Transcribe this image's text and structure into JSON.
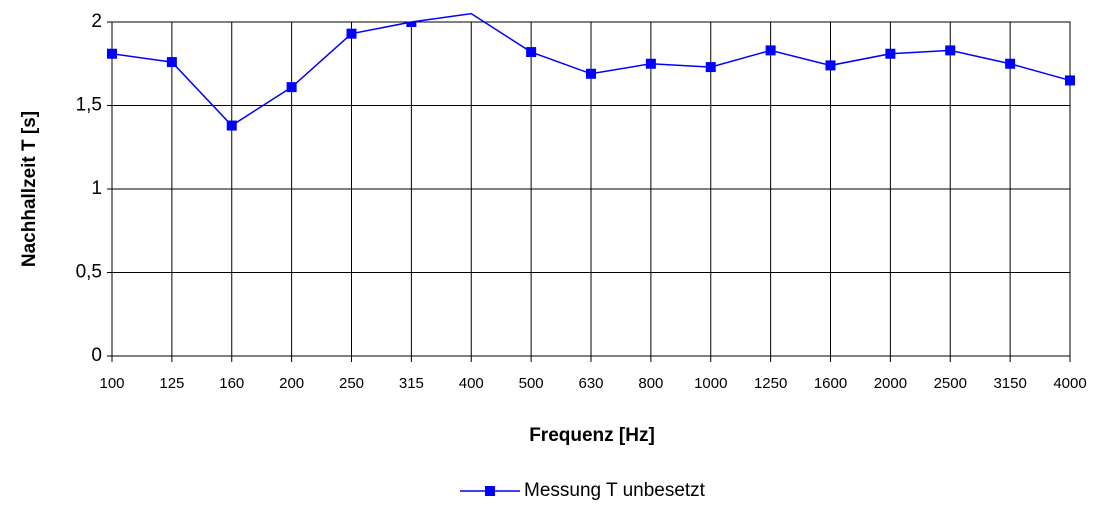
{
  "chart_data": {
    "type": "line",
    "xlabel": "Frequenz [Hz]",
    "ylabel": "Nachhallzeit T [s]",
    "categories": [
      "100",
      "125",
      "160",
      "200",
      "250",
      "315",
      "400",
      "500",
      "630",
      "800",
      "1000",
      "1250",
      "1600",
      "2000",
      "2500",
      "3150",
      "4000"
    ],
    "series": [
      {
        "name": "Messung T unbesetzt",
        "color": "#0000ff",
        "values": [
          1.81,
          1.76,
          1.38,
          1.61,
          1.93,
          2.0,
          2.05,
          1.82,
          1.69,
          1.75,
          1.73,
          1.83,
          1.74,
          1.81,
          1.83,
          1.75,
          1.65
        ]
      }
    ],
    "ylim": [
      0,
      2
    ],
    "yticks": [
      0,
      {
        "value": 0.5,
        "label": "0,5"
      },
      1,
      {
        "value": 1.5,
        "label": "1,5"
      },
      2
    ],
    "grid": true,
    "legend": "bottom"
  }
}
